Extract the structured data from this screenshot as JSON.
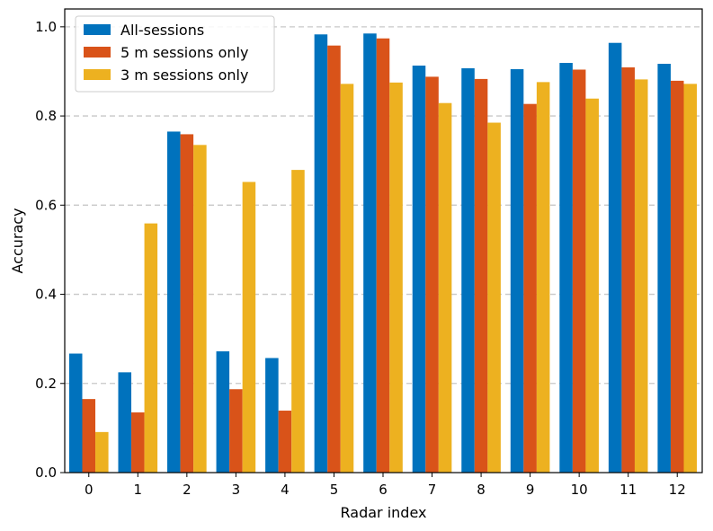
{
  "chart_data": {
    "type": "bar",
    "title": "",
    "xlabel": "Radar index",
    "ylabel": "Accuracy",
    "ylim": [
      0,
      1.0
    ],
    "yticks": [
      "0.0",
      "0.2",
      "0.4",
      "0.6",
      "0.8",
      "1.0"
    ],
    "categories": [
      "0",
      "1",
      "2",
      "3",
      "4",
      "5",
      "6",
      "7",
      "8",
      "9",
      "10",
      "11",
      "12"
    ],
    "grid": "horizontal dashed",
    "legend_position": "top-left",
    "series": [
      {
        "name": "All-sessions",
        "color": "#0072bd",
        "values": [
          0.267,
          0.225,
          0.765,
          0.272,
          0.257,
          0.983,
          0.985,
          0.913,
          0.907,
          0.905,
          0.919,
          0.964,
          0.917
        ]
      },
      {
        "name": "5 m sessions only",
        "color": "#d95319",
        "values": [
          0.165,
          0.135,
          0.759,
          0.187,
          0.139,
          0.958,
          0.974,
          0.888,
          0.883,
          0.827,
          0.904,
          0.909,
          0.879
        ]
      },
      {
        "name": "3 m sessions only",
        "color": "#edb120",
        "values": [
          0.091,
          0.559,
          0.735,
          0.652,
          0.679,
          0.872,
          0.875,
          0.829,
          0.785,
          0.876,
          0.839,
          0.882,
          0.872
        ]
      }
    ]
  }
}
